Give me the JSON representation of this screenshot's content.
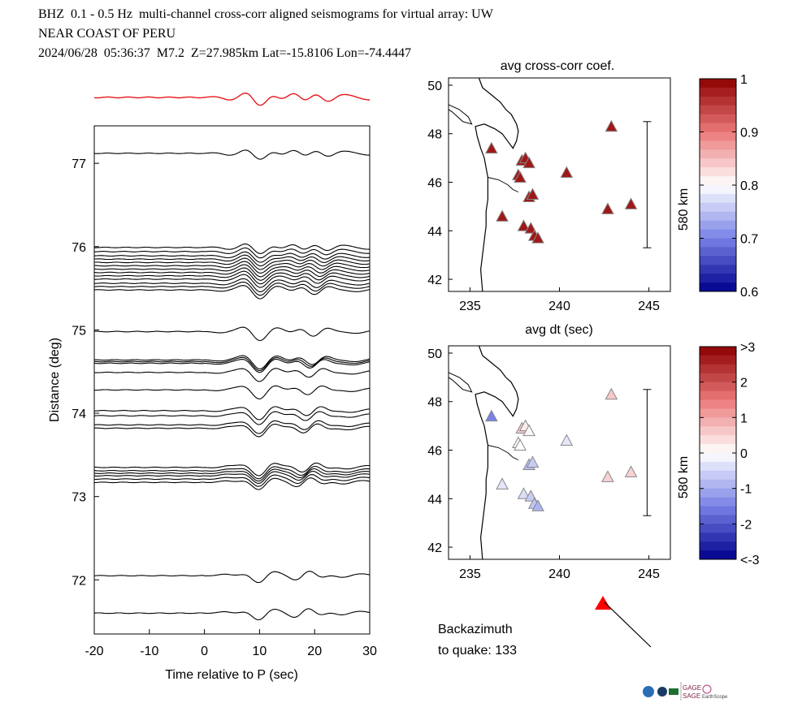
{
  "header": {
    "line1": "BHZ  0.1 - 0.5 Hz  multi-channel cross-corr aligned seismograms for virtual array: UW",
    "line2": "NEAR COAST OF PERU",
    "line3": "2024/06/28  05:36:37  M7.2  Z=27.985km Lat=-15.8106 Lon=-74.4447"
  },
  "colors": {
    "stack": "#e8191d",
    "trace": "#000000",
    "quake_marker": "#ff0000"
  },
  "chart_data": [
    {
      "type": "line",
      "name": "seismogram record section",
      "xlabel": "Time relative to P (sec)",
      "ylabel": "Distance (deg)",
      "xlim": [
        -20,
        30
      ],
      "ylim": [
        71.35,
        77.45
      ],
      "xticks": [
        -20,
        -10,
        0,
        10,
        20,
        30
      ],
      "xtick_labels": [
        "-20",
        "-10",
        "0",
        "10",
        "20",
        "30"
      ],
      "yticks": [
        72,
        73,
        74,
        75,
        76,
        77
      ],
      "ytick_labels": [
        "72",
        "73",
        "74",
        "75",
        "76",
        "77"
      ],
      "trace_distances": [
        77.12,
        75.99,
        75.94,
        75.89,
        75.85,
        75.81,
        75.77,
        75.73,
        75.69,
        75.65,
        75.61,
        75.56,
        75.52,
        75.48,
        74.98,
        74.64,
        74.62,
        74.6,
        74.49,
        74.28,
        74.03,
        73.97,
        73.86,
        73.82,
        73.35,
        73.31,
        73.28,
        73.25,
        73.21,
        73.17,
        72.05,
        71.6
      ],
      "stack_trace": "red stacked waveform above section",
      "grid": false
    },
    {
      "type": "scatter",
      "title": "avg cross-corr coef.",
      "xlabel": "avg dt (sec)",
      "xlim": [
        233.8,
        246.2
      ],
      "ylim": [
        41.5,
        50.3
      ],
      "xticks": [
        235,
        240,
        245
      ],
      "xtick_labels": [
        "235",
        "240",
        "245"
      ],
      "yticks": [
        42,
        44,
        46,
        48,
        50
      ],
      "ytick_labels": [
        "42",
        "44",
        "46",
        "48",
        "50"
      ],
      "scale_bar_label": "580 km",
      "colorbar": {
        "min": 0.6,
        "max": 1.0,
        "tick_labels": [
          "1",
          "0.9",
          "0.8",
          "0.7",
          "0.6"
        ]
      },
      "points": [
        {
          "lon": 236.2,
          "lat": 47.4,
          "value": 0.98
        },
        {
          "lon": 237.9,
          "lat": 46.9,
          "value": 0.98
        },
        {
          "lon": 238.1,
          "lat": 47.0,
          "value": 0.98
        },
        {
          "lon": 238.3,
          "lat": 46.8,
          "value": 0.98
        },
        {
          "lon": 237.7,
          "lat": 46.3,
          "value": 0.98
        },
        {
          "lon": 237.8,
          "lat": 46.2,
          "value": 0.98
        },
        {
          "lon": 240.4,
          "lat": 46.4,
          "value": 0.98
        },
        {
          "lon": 238.3,
          "lat": 45.4,
          "value": 0.98
        },
        {
          "lon": 238.5,
          "lat": 45.5,
          "value": 0.98
        },
        {
          "lon": 236.8,
          "lat": 44.6,
          "value": 0.98
        },
        {
          "lon": 238.0,
          "lat": 44.2,
          "value": 0.98
        },
        {
          "lon": 238.4,
          "lat": 44.1,
          "value": 0.98
        },
        {
          "lon": 238.6,
          "lat": 43.8,
          "value": 0.98
        },
        {
          "lon": 238.8,
          "lat": 43.7,
          "value": 0.98
        },
        {
          "lon": 242.9,
          "lat": 48.3,
          "value": 0.98
        },
        {
          "lon": 242.7,
          "lat": 44.9,
          "value": 0.98
        },
        {
          "lon": 244.0,
          "lat": 45.1,
          "value": 0.98
        }
      ]
    },
    {
      "type": "scatter",
      "xlim": [
        233.8,
        246.2
      ],
      "ylim": [
        41.5,
        50.3
      ],
      "xticks": [
        235,
        240,
        245
      ],
      "xtick_labels": [
        "235",
        "240",
        "245"
      ],
      "yticks": [
        42,
        44,
        46,
        48,
        50
      ],
      "ytick_labels": [
        "42",
        "44",
        "46",
        "48",
        "50"
      ],
      "scale_bar_label": "580 km",
      "colorbar": {
        "min": -3,
        "max": 3,
        "tick_labels": [
          ">3",
          "2",
          "1",
          "0",
          "-1",
          "-2",
          "<-3"
        ]
      },
      "points": [
        {
          "lon": 236.2,
          "lat": 47.4,
          "value": -1.5
        },
        {
          "lon": 237.9,
          "lat": 46.9,
          "value": 0.6
        },
        {
          "lon": 238.1,
          "lat": 47.0,
          "value": 0.2
        },
        {
          "lon": 238.3,
          "lat": 46.8,
          "value": 0.1
        },
        {
          "lon": 237.7,
          "lat": 46.3,
          "value": 0.1
        },
        {
          "lon": 237.8,
          "lat": 46.2,
          "value": 0.0
        },
        {
          "lon": 240.4,
          "lat": 46.4,
          "value": -0.3
        },
        {
          "lon": 238.3,
          "lat": 45.4,
          "value": -0.8
        },
        {
          "lon": 238.5,
          "lat": 45.5,
          "value": -0.6
        },
        {
          "lon": 236.8,
          "lat": 44.6,
          "value": -0.3
        },
        {
          "lon": 238.0,
          "lat": 44.2,
          "value": -0.4
        },
        {
          "lon": 238.4,
          "lat": 44.1,
          "value": -0.6
        },
        {
          "lon": 238.6,
          "lat": 43.8,
          "value": -0.7
        },
        {
          "lon": 238.8,
          "lat": 43.7,
          "value": -0.9
        },
        {
          "lon": 242.9,
          "lat": 48.3,
          "value": 0.6
        },
        {
          "lon": 242.7,
          "lat": 44.9,
          "value": 0.5
        },
        {
          "lon": 244.0,
          "lat": 45.1,
          "value": 0.5
        }
      ]
    }
  ],
  "backazimuth": {
    "label_line1": "Backazimuth",
    "label_line2": "to quake:  133",
    "value": 133
  },
  "logos": {
    "gage": "GAGE",
    "sage": "SAGE",
    "earthscope": "EarthScope"
  }
}
